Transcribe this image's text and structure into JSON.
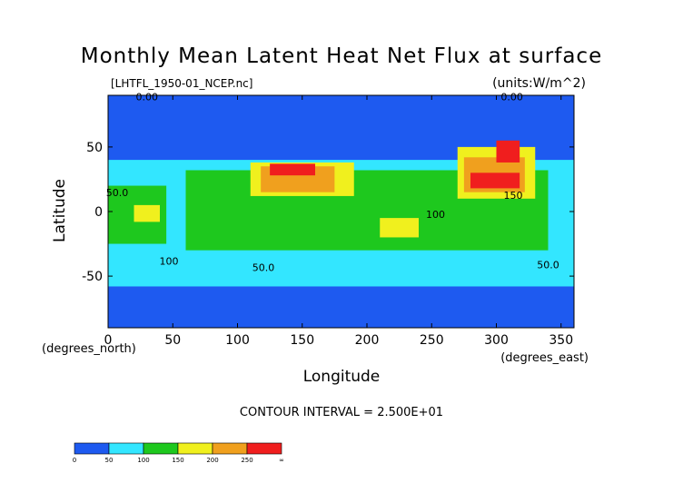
{
  "chart_data": {
    "type": "heatmap",
    "title": "Monthly Mean Latent Heat Net Flux at surface",
    "file_label": "[LHTFL_1950-01_NCEP.nc]",
    "units_label": "(units:W/m^2)",
    "xlabel": "Longitude",
    "ylabel": "Latitude",
    "x_unit_label": "(degrees_east)",
    "y_unit_label": "(degrees_north)",
    "xlim": [
      0,
      360
    ],
    "ylim": [
      -90,
      90
    ],
    "x_ticks": [
      0,
      50,
      100,
      150,
      200,
      250,
      300,
      350
    ],
    "y_ticks": [
      50,
      0,
      -50
    ],
    "contour_interval_text": "CONTOUR INTERVAL = 2.500E+01",
    "contour_labels": [
      {
        "text": "0.00",
        "lon": 30,
        "lat": 86
      },
      {
        "text": "0.00",
        "lon": 312,
        "lat": 86
      },
      {
        "text": "50.0",
        "lon": 7,
        "lat": 12
      },
      {
        "text": "100",
        "lon": 47,
        "lat": -41
      },
      {
        "text": "50.0",
        "lon": 120,
        "lat": -46
      },
      {
        "text": "100",
        "lon": 253,
        "lat": -5
      },
      {
        "text": "150",
        "lon": 313,
        "lat": 10
      },
      {
        "text": "50.0",
        "lon": 340,
        "lat": -44
      }
    ],
    "colorbar": {
      "boundaries": [
        "0",
        "50",
        "100",
        "150",
        "200",
        "250",
        "∞"
      ],
      "colors": [
        "#1e5af0",
        "#33e6ff",
        "#1ec81e",
        "#f0f01e",
        "#f0a01e",
        "#f01e1e"
      ]
    },
    "field_regions": [
      {
        "level": 0,
        "lon": [
          0,
          360
        ],
        "lat": [
          -90,
          90
        ]
      },
      {
        "level": 1,
        "lon": [
          0,
          360
        ],
        "lat": [
          -58,
          40
        ]
      },
      {
        "level": 2,
        "lon": [
          60,
          340
        ],
        "lat": [
          -30,
          32
        ]
      },
      {
        "level": 2,
        "lon": [
          0,
          45
        ],
        "lat": [
          -25,
          20
        ]
      },
      {
        "level": 3,
        "lon": [
          110,
          190
        ],
        "lat": [
          12,
          38
        ]
      },
      {
        "level": 4,
        "lon": [
          118,
          175
        ],
        "lat": [
          15,
          35
        ]
      },
      {
        "level": 5,
        "lon": [
          125,
          160
        ],
        "lat": [
          28,
          37
        ]
      },
      {
        "level": 3,
        "lon": [
          270,
          330
        ],
        "lat": [
          10,
          50
        ]
      },
      {
        "level": 4,
        "lon": [
          275,
          322
        ],
        "lat": [
          15,
          42
        ]
      },
      {
        "level": 5,
        "lon": [
          280,
          318
        ],
        "lat": [
          18,
          30
        ]
      },
      {
        "level": 5,
        "lon": [
          300,
          318
        ],
        "lat": [
          38,
          55
        ]
      },
      {
        "level": 3,
        "lon": [
          20,
          40
        ],
        "lat": [
          -8,
          5
        ]
      },
      {
        "level": 3,
        "lon": [
          210,
          240
        ],
        "lat": [
          -20,
          -5
        ]
      }
    ]
  }
}
